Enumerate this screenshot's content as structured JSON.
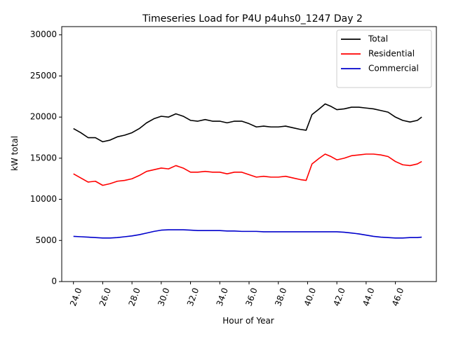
{
  "chart_data": {
    "type": "line",
    "title": "Timeseries Load for P4U p4uhs0_1247  Day 2",
    "xlabel": "Hour of Year",
    "ylabel": "kW total",
    "xlim": [
      23.2,
      48.8
    ],
    "ylim": [
      0,
      31000
    ],
    "xticks": [
      24,
      26,
      28,
      30,
      32,
      34,
      36,
      38,
      40,
      42,
      44,
      46
    ],
    "xtick_labels": [
      "24.0",
      "26.0",
      "28.0",
      "30.0",
      "32.0",
      "34.0",
      "36.0",
      "38.0",
      "40.0",
      "42.0",
      "44.0",
      "46.0"
    ],
    "yticks": [
      0,
      5000,
      10000,
      15000,
      20000,
      25000,
      30000
    ],
    "ytick_labels": [
      "0",
      "5000",
      "10000",
      "15000",
      "20000",
      "25000",
      "30000"
    ],
    "legend_position": "top-right",
    "x": [
      24.0,
      24.5,
      25.0,
      25.5,
      26.0,
      26.5,
      27.0,
      27.5,
      28.0,
      28.5,
      29.0,
      29.5,
      30.0,
      30.5,
      31.0,
      31.5,
      32.0,
      32.5,
      33.0,
      33.5,
      34.0,
      34.5,
      35.0,
      35.5,
      36.0,
      36.5,
      37.0,
      37.5,
      38.0,
      38.5,
      39.0,
      39.5,
      39.9,
      40.3,
      40.8,
      41.2,
      41.6,
      42.0,
      42.5,
      43.0,
      43.5,
      44.0,
      44.5,
      45.0,
      45.5,
      46.0,
      46.5,
      47.0,
      47.5,
      47.8
    ],
    "series": [
      {
        "name": "Total",
        "color": "#000000",
        "values": [
          18600,
          18100,
          17500,
          17500,
          17000,
          17200,
          17600,
          17800,
          18100,
          18600,
          19300,
          19800,
          20100,
          20000,
          20400,
          20100,
          19600,
          19500,
          19700,
          19500,
          19500,
          19300,
          19500,
          19500,
          19200,
          18800,
          18900,
          18800,
          18800,
          18900,
          18700,
          18500,
          18400,
          20300,
          21000,
          21600,
          21300,
          20900,
          21000,
          21200,
          21200,
          21100,
          21000,
          20800,
          20600,
          20000,
          19600,
          19400,
          19600,
          20000
        ]
      },
      {
        "name": "Residential",
        "color": "#ff0000",
        "values": [
          13100,
          12600,
          12100,
          12200,
          11700,
          11900,
          12200,
          12300,
          12500,
          12900,
          13400,
          13600,
          13800,
          13700,
          14100,
          13800,
          13300,
          13300,
          13400,
          13300,
          13300,
          13100,
          13300,
          13300,
          13000,
          12700,
          12800,
          12700,
          12700,
          12800,
          12600,
          12400,
          12300,
          14300,
          15000,
          15500,
          15200,
          14800,
          15000,
          15300,
          15400,
          15500,
          15500,
          15400,
          15200,
          14600,
          14200,
          14100,
          14300,
          14600
        ]
      },
      {
        "name": "Commercial",
        "color": "#0000cc",
        "values": [
          5500,
          5450,
          5400,
          5350,
          5300,
          5300,
          5350,
          5450,
          5550,
          5700,
          5900,
          6100,
          6250,
          6300,
          6300,
          6300,
          6250,
          6200,
          6200,
          6200,
          6200,
          6150,
          6150,
          6100,
          6100,
          6100,
          6050,
          6050,
          6050,
          6050,
          6050,
          6050,
          6050,
          6050,
          6050,
          6050,
          6050,
          6050,
          6000,
          5900,
          5800,
          5650,
          5500,
          5400,
          5350,
          5300,
          5300,
          5350,
          5350,
          5400
        ]
      }
    ]
  }
}
